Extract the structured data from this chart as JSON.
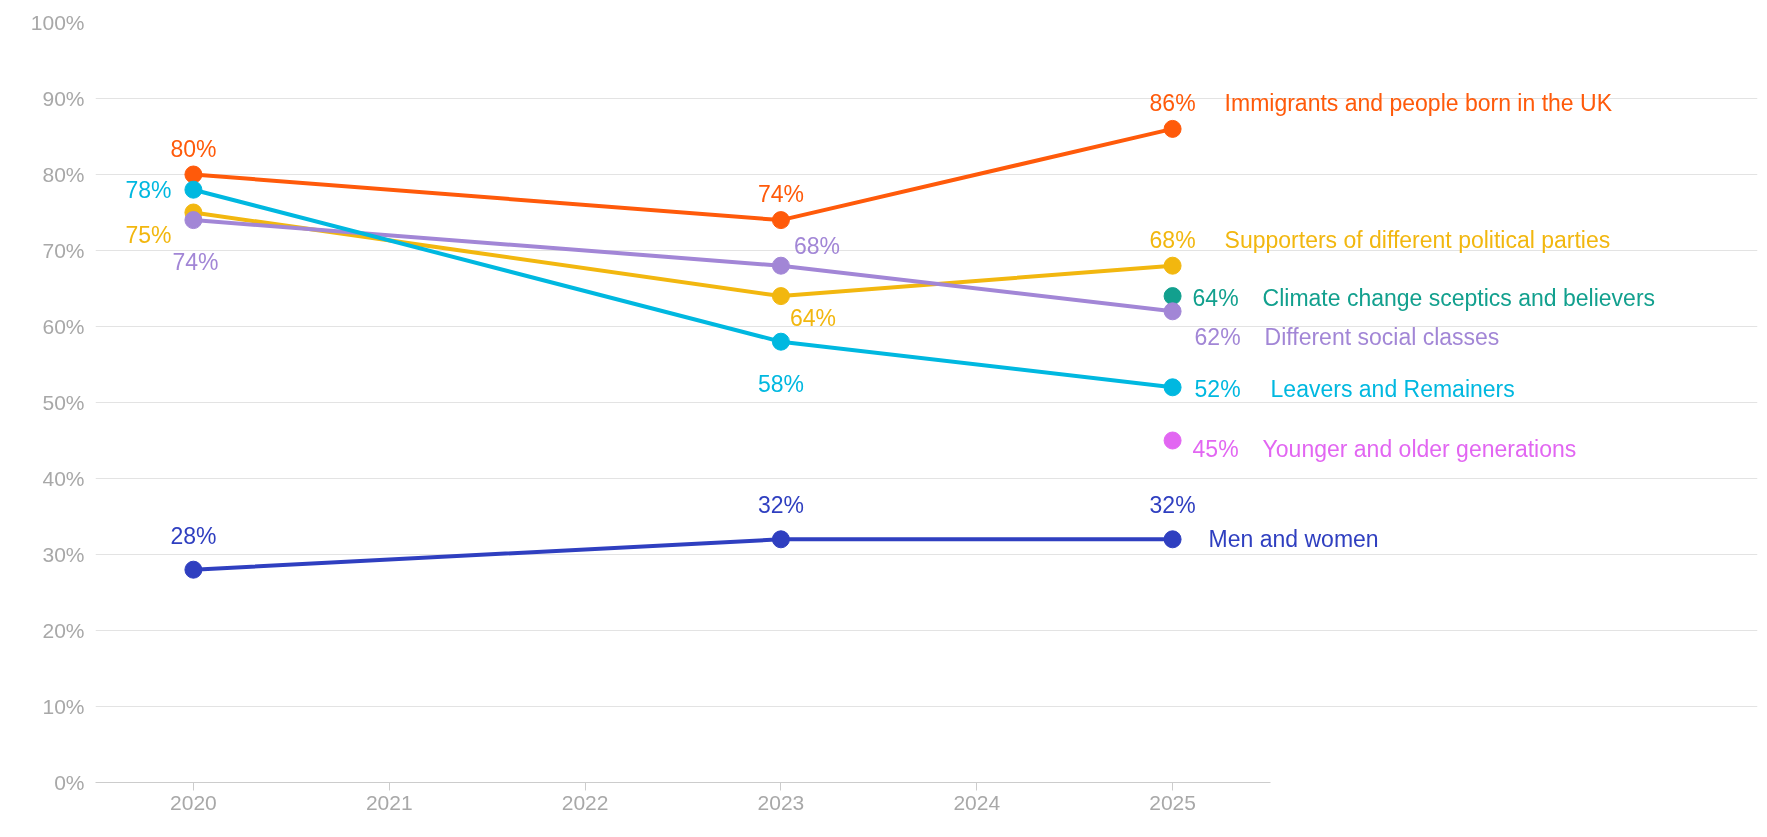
{
  "chart_data": {
    "type": "line",
    "x": [
      2020,
      2023,
      2025
    ],
    "series": [
      {
        "name": "Immigrants and people born in the UK",
        "color": "#ff5a0a",
        "values": [
          80,
          74,
          86
        ],
        "value_labels": [
          "80%",
          "74%",
          "86%"
        ]
      },
      {
        "name": "Supporters of different political parties",
        "color": "#f2b70f",
        "values": [
          75,
          64,
          68
        ],
        "value_labels": [
          "75%",
          "64%",
          "68%"
        ]
      },
      {
        "name": "Climate change sceptics and believers",
        "color": "#12a08e",
        "x": [
          2025
        ],
        "values": [
          64
        ],
        "value_labels": [
          "64%"
        ]
      },
      {
        "name": "Different social classes",
        "color": "#a286d6",
        "values": [
          74,
          68,
          62
        ],
        "value_labels": [
          "74%",
          "68%",
          "62%"
        ]
      },
      {
        "name": "Leavers and Remainers",
        "color": "#00b8e0",
        "values": [
          78,
          58,
          52
        ],
        "value_labels": [
          "78%",
          "58%",
          "52%"
        ]
      },
      {
        "name": "Younger and older generations",
        "color": "#e266f2",
        "x": [
          2025
        ],
        "values": [
          45
        ],
        "value_labels": [
          "45%"
        ]
      },
      {
        "name": "Men and women",
        "color": "#2f3fc0",
        "values": [
          28,
          32,
          32
        ],
        "value_labels": [
          "28%",
          "32%",
          "32%"
        ]
      }
    ],
    "xlim": [
      2019.5,
      2025.5
    ],
    "xticks": [
      2020,
      2021,
      2022,
      2023,
      2024,
      2025
    ],
    "ylim": [
      0,
      100
    ],
    "yticks": [
      {
        "value": 0,
        "label": "0%"
      },
      {
        "value": 10,
        "label": "10%"
      },
      {
        "value": 20,
        "label": "20%"
      },
      {
        "value": 30,
        "label": "30%"
      },
      {
        "value": 40,
        "label": "40%"
      },
      {
        "value": 50,
        "label": "50%"
      },
      {
        "value": 60,
        "label": "60%"
      },
      {
        "value": 70,
        "label": "70%"
      },
      {
        "value": 80,
        "label": "80%"
      },
      {
        "value": 90,
        "label": "90%"
      },
      {
        "value": 100,
        "label": "100%"
      }
    ],
    "grid": "y",
    "legend": false,
    "marker": "circle",
    "line_style": "solid"
  }
}
